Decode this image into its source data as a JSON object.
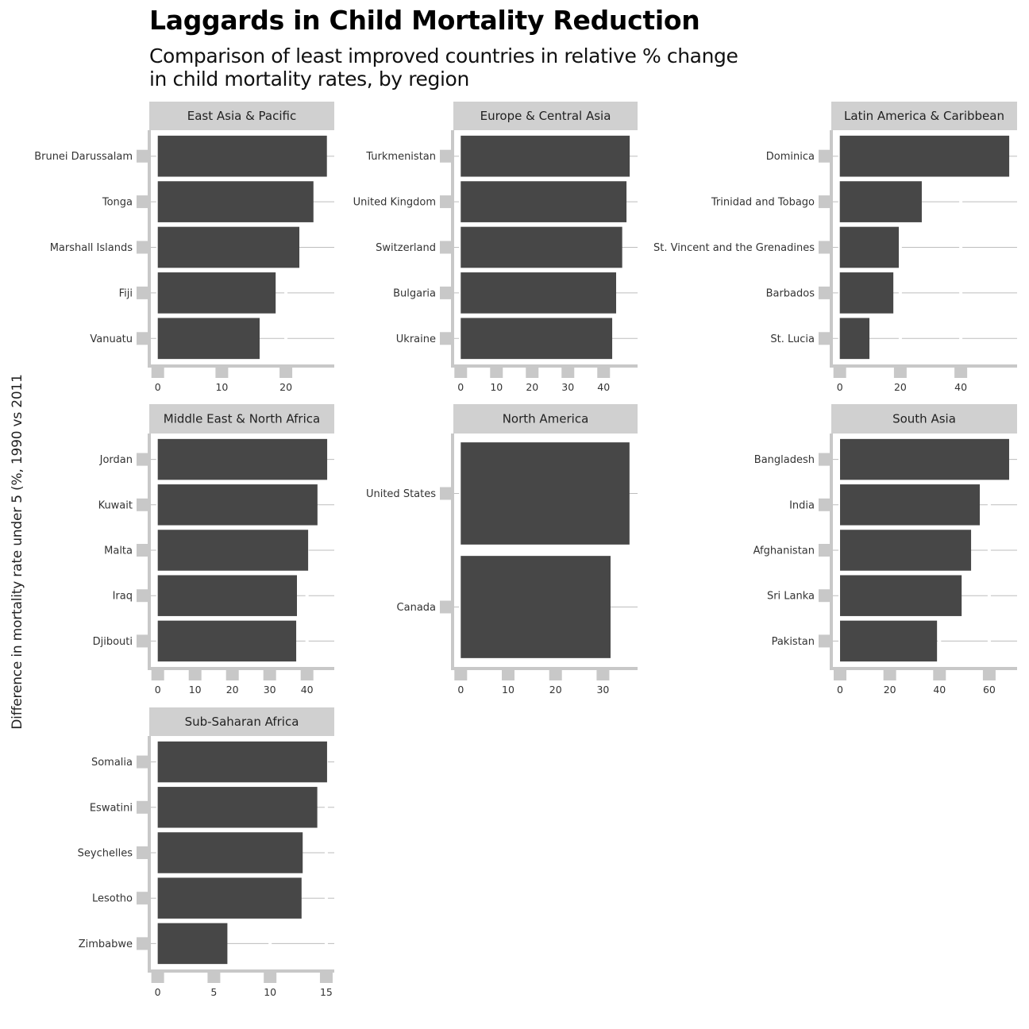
{
  "chart_data": {
    "type": "bar",
    "orientation": "horizontal",
    "layout": "faceted",
    "title": "Laggards in Child Mortality Reduction",
    "subtitle": "Comparison of least improved countries in relative % change in child mortality rates, by region",
    "xlabel": "",
    "ylabel": "Difference in mortality rate under 5 (%, 1990 vs 2011",
    "grid": true,
    "colors": {
      "bar": "#474747",
      "strip": "#d0d0d0",
      "axis": "#c8c8c8",
      "gridline": "#bdbdbd",
      "text": "#333333"
    },
    "panels": [
      {
        "region": "East Asia & Pacific",
        "categories": [
          "Brunei Darussalam",
          "Tonga",
          "Marshall Islands",
          "Fiji",
          "Vanuatu"
        ],
        "values": [
          26.4,
          24.3,
          22.1,
          18.4,
          15.9
        ],
        "xlim": [
          -1.08,
          27.55
        ],
        "ticks": [
          0,
          10,
          20
        ],
        "tick_labels": [
          "0",
          "10",
          "20"
        ]
      },
      {
        "region": "Europe & Central Asia",
        "categories": [
          "Turkmenistan",
          "United Kingdom",
          "Switzerland",
          "Bulgaria",
          "Ukraine"
        ],
        "values": [
          47.3,
          46.4,
          45.2,
          43.5,
          42.4
        ],
        "xlim": [
          -1.84,
          49.5
        ],
        "ticks": [
          0,
          10,
          20,
          30,
          40
        ],
        "tick_labels": [
          "0",
          "10",
          "20",
          "30",
          "40"
        ]
      },
      {
        "region": "Latin America & Caribbean",
        "categories": [
          "Dominica",
          "Trinidad and Tobago",
          "St. Vincent and the Grenadines",
          "Barbados",
          "St. Lucia"
        ],
        "values": [
          56.0,
          27.1,
          19.5,
          17.7,
          9.8
        ],
        "xlim": [
          -2.28,
          58.6
        ],
        "ticks": [
          0,
          20,
          40
        ],
        "tick_labels": [
          "0",
          "20",
          "40"
        ]
      },
      {
        "region": "Middle East & North Africa",
        "categories": [
          "Jordan",
          "Kuwait",
          "Malta",
          "Iraq",
          "Djibouti"
        ],
        "values": [
          45.4,
          42.8,
          40.3,
          37.3,
          37.1
        ],
        "xlim": [
          -1.85,
          47.3
        ],
        "ticks": [
          0,
          10,
          20,
          30,
          40
        ],
        "tick_labels": [
          "0",
          "10",
          "20",
          "30",
          "40"
        ]
      },
      {
        "region": "North America",
        "categories": [
          "United States",
          "Canada"
        ],
        "values": [
          35.6,
          31.6
        ],
        "xlim": [
          -1.39,
          37.3
        ],
        "ticks": [
          0,
          10,
          20,
          30
        ],
        "tick_labels": [
          "0",
          "10",
          "20",
          "30"
        ]
      },
      {
        "region": "South Asia",
        "categories": [
          "Bangladesh",
          "India",
          "Afghanistan",
          "Sri Lanka",
          "Pakistan"
        ],
        "values": [
          68.0,
          56.2,
          52.7,
          48.9,
          39.0
        ],
        "xlim": [
          -2.88,
          71.2
        ],
        "ticks": [
          0,
          20,
          40,
          60
        ],
        "tick_labels": [
          "0",
          "20",
          "40",
          "60"
        ]
      },
      {
        "region": "Sub-Saharan Africa",
        "categories": [
          "Somalia",
          "Eswatini",
          "Seychelles",
          "Lesotho",
          "Zimbabwe"
        ],
        "values": [
          15.07,
          14.2,
          12.9,
          12.8,
          6.2
        ],
        "xlim": [
          -0.61,
          15.71
        ],
        "ticks": [
          0,
          5,
          10,
          15
        ],
        "tick_labels": [
          "0",
          "5",
          "10",
          "15"
        ]
      }
    ]
  }
}
